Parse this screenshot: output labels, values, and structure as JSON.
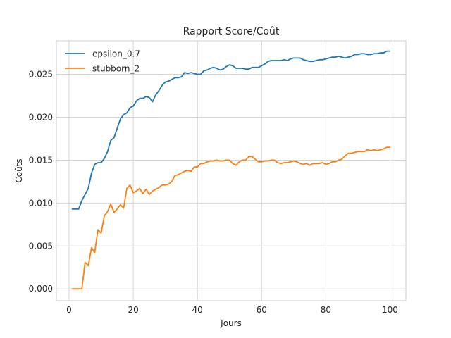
{
  "chart_data": {
    "type": "line",
    "title": "Rapport Score/Coût",
    "xlabel": "Jours",
    "ylabel": "Coûts",
    "xlim": [
      -3.95,
      104.95
    ],
    "ylim": [
      -0.00138,
      0.0289
    ],
    "xticks": [
      0,
      20,
      40,
      60,
      80,
      100
    ],
    "xtick_labels": [
      "0",
      "20",
      "40",
      "60",
      "80",
      "100"
    ],
    "yticks": [
      0.0,
      0.005,
      0.01,
      0.015,
      0.02,
      0.025
    ],
    "ytick_labels": [
      "0.000",
      "0.005",
      "0.010",
      "0.015",
      "0.020",
      "0.025"
    ],
    "grid": true,
    "legend_position": "top-left",
    "x": [
      1,
      2,
      3,
      4,
      5,
      6,
      7,
      8,
      9,
      10,
      11,
      12,
      13,
      14,
      15,
      16,
      17,
      18,
      19,
      20,
      21,
      22,
      23,
      24,
      25,
      26,
      27,
      28,
      29,
      30,
      31,
      32,
      33,
      34,
      35,
      36,
      37,
      38,
      39,
      40,
      41,
      42,
      43,
      44,
      45,
      46,
      47,
      48,
      49,
      50,
      51,
      52,
      53,
      54,
      55,
      56,
      57,
      58,
      59,
      60,
      61,
      62,
      63,
      64,
      65,
      66,
      67,
      68,
      69,
      70,
      71,
      72,
      73,
      74,
      75,
      76,
      77,
      78,
      79,
      80,
      81,
      82,
      83,
      84,
      85,
      86,
      87,
      88,
      89,
      90,
      91,
      92,
      93,
      94,
      95,
      96,
      97,
      98,
      99,
      100
    ],
    "series": [
      {
        "name": "epsilon_0.7",
        "color": "#1f77b4",
        "values": [
          0.0093,
          0.0093,
          0.0093,
          0.0103,
          0.011,
          0.0117,
          0.0135,
          0.0145,
          0.0147,
          0.0147,
          0.0152,
          0.016,
          0.0173,
          0.0176,
          0.0187,
          0.0198,
          0.0203,
          0.0205,
          0.0211,
          0.0213,
          0.0219,
          0.0222,
          0.0222,
          0.0224,
          0.0223,
          0.0218,
          0.0226,
          0.0231,
          0.0237,
          0.0241,
          0.0242,
          0.0244,
          0.0246,
          0.0246,
          0.0247,
          0.0252,
          0.0251,
          0.0252,
          0.0251,
          0.025,
          0.025,
          0.0254,
          0.0255,
          0.0257,
          0.0258,
          0.0257,
          0.0255,
          0.0256,
          0.0259,
          0.0261,
          0.026,
          0.0257,
          0.0257,
          0.0257,
          0.0256,
          0.0256,
          0.0258,
          0.0258,
          0.0258,
          0.026,
          0.0262,
          0.0265,
          0.0266,
          0.0266,
          0.0266,
          0.0266,
          0.0267,
          0.0266,
          0.0268,
          0.0269,
          0.0269,
          0.0269,
          0.0267,
          0.0266,
          0.0265,
          0.0265,
          0.0266,
          0.0267,
          0.0267,
          0.0268,
          0.0269,
          0.027,
          0.027,
          0.0271,
          0.027,
          0.0269,
          0.027,
          0.0271,
          0.0273,
          0.0273,
          0.0274,
          0.0274,
          0.0273,
          0.0273,
          0.0274,
          0.0274,
          0.0275,
          0.0275,
          0.0277,
          0.0277
        ]
      },
      {
        "name": "stubborn_2",
        "color": "#ff7f0e",
        "values": [
          0.0,
          0.0,
          0.0,
          0.0,
          0.0031,
          0.0027,
          0.0048,
          0.0042,
          0.0069,
          0.0065,
          0.0085,
          0.009,
          0.0099,
          0.0089,
          0.0093,
          0.0098,
          0.0094,
          0.0117,
          0.0121,
          0.0112,
          0.0114,
          0.0117,
          0.0111,
          0.0116,
          0.011,
          0.0114,
          0.0116,
          0.0118,
          0.0121,
          0.0121,
          0.0122,
          0.0125,
          0.0132,
          0.0133,
          0.0135,
          0.0137,
          0.0138,
          0.0137,
          0.0142,
          0.0142,
          0.0146,
          0.0146,
          0.0148,
          0.0149,
          0.0149,
          0.015,
          0.0149,
          0.0149,
          0.015,
          0.015,
          0.0146,
          0.0144,
          0.0148,
          0.015,
          0.015,
          0.0154,
          0.0154,
          0.0151,
          0.0148,
          0.0148,
          0.0149,
          0.0149,
          0.015,
          0.015,
          0.0147,
          0.0146,
          0.0147,
          0.0147,
          0.0148,
          0.0149,
          0.0148,
          0.0146,
          0.0145,
          0.0146,
          0.0144,
          0.0146,
          0.0146,
          0.0146,
          0.0147,
          0.0145,
          0.0146,
          0.0148,
          0.0148,
          0.015,
          0.0151,
          0.0155,
          0.0158,
          0.0158,
          0.0159,
          0.016,
          0.016,
          0.016,
          0.0162,
          0.0161,
          0.0162,
          0.0161,
          0.0162,
          0.0163,
          0.0165,
          0.0165
        ]
      }
    ]
  }
}
